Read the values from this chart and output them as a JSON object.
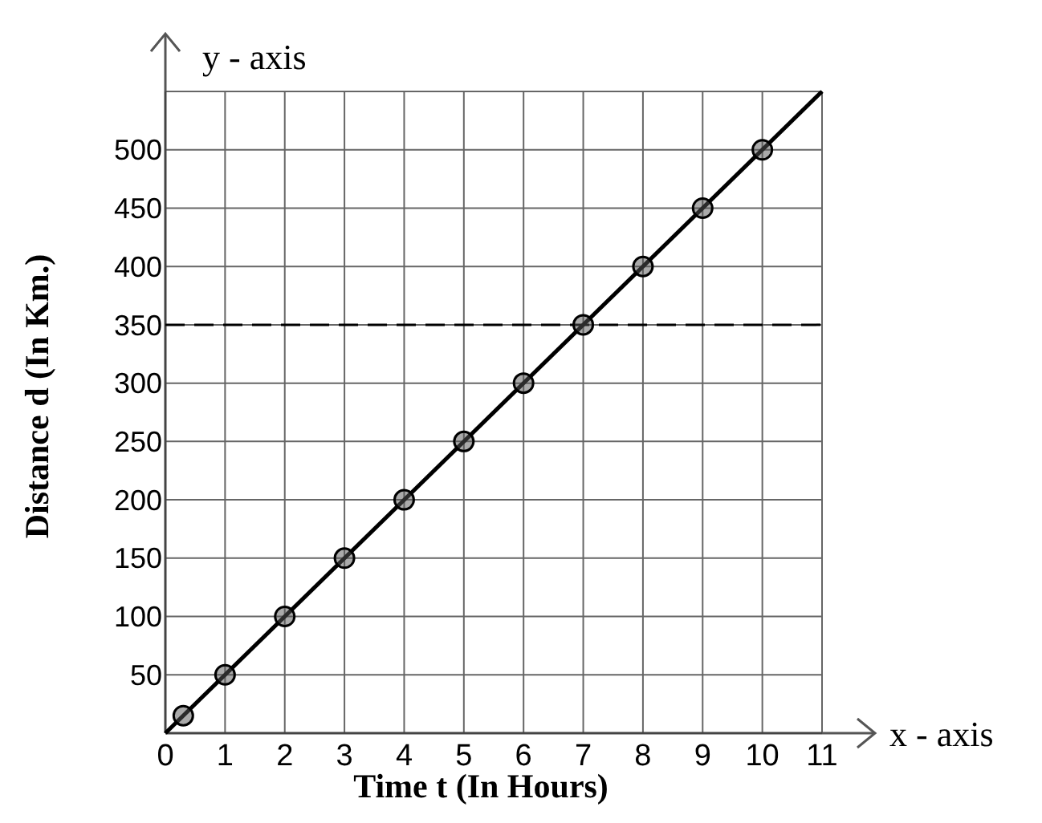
{
  "chart_data": {
    "type": "line",
    "xlabel": "Time t (In Hours)",
    "ylabel": "Distance d (In Km.)",
    "xlim": [
      0,
      11
    ],
    "ylim": [
      0,
      550
    ],
    "xticks": [
      0,
      1,
      2,
      3,
      4,
      5,
      6,
      7,
      8,
      9,
      10,
      11
    ],
    "yticks": [
      50,
      100,
      150,
      200,
      250,
      300,
      350,
      400,
      450,
      500,
      {
        "value": 550,
        "label": null
      }
    ],
    "grid": true,
    "series": [
      {
        "color": "#000000",
        "x": [
          0,
          11
        ],
        "values": [
          0,
          550
        ],
        "marker": "none"
      },
      {
        "type": "scatter",
        "color": "#555555",
        "x": [
          0.3,
          1,
          2,
          3,
          4,
          5,
          6,
          7,
          8,
          9,
          10
        ],
        "values": [
          15,
          50,
          100,
          150,
          200,
          250,
          300,
          350,
          400,
          450,
          500
        ],
        "marker": "circle"
      }
    ],
    "ref_lines": [
      {
        "axis": "y",
        "value": 350,
        "line_style": "dashed",
        "color": "#000000"
      }
    ],
    "annotations": [
      "y - axis",
      "x - axis"
    ]
  }
}
